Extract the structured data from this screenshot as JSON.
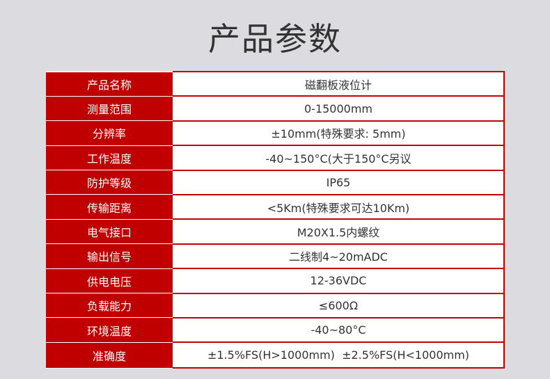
{
  "title": "产品参数",
  "colors": {
    "label_bg": "#c00000",
    "border": "#c00000",
    "page_bg": "#dcdce0"
  },
  "rows": [
    {
      "label": "产品名称",
      "value": "磁翻板液位计"
    },
    {
      "label": "测量范围",
      "value": "0-15000mm"
    },
    {
      "label": "分辨率",
      "value": "±10mm(特殊要求: 5mm)"
    },
    {
      "label": "工作温度",
      "value": "-40~150°C(大于150°C另议"
    },
    {
      "label": "防护等级",
      "value": "IP65"
    },
    {
      "label": "传输距离",
      "value": "<5Km(特殊要求可达10Km)"
    },
    {
      "label": "电气接口",
      "value": "M20X1.5内螺纹"
    },
    {
      "label": "输出信号",
      "value": "二线制4~20mADC"
    },
    {
      "label": "供电电压",
      "value": "12-36VDC"
    },
    {
      "label": "负载能力",
      "value": "≤600Ω"
    },
    {
      "label": "环境温度",
      "value": "-40~80°C"
    },
    {
      "label": "准确度",
      "value": "±1.5%FS(H>1000mm)  ±2.5%FS(H<1000mm)"
    }
  ]
}
